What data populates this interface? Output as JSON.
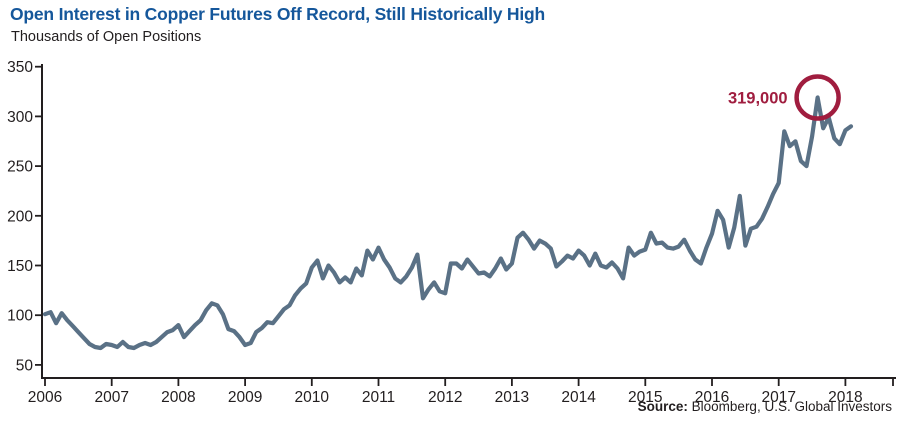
{
  "header": {
    "title": "Open Interest in Copper Futures Off Record, Still Historically High",
    "subtitle": "Thousands of Open Positions"
  },
  "source": {
    "label": "Source:",
    "text": " Bloomberg, U.S. Global Investors"
  },
  "colors": {
    "title_blue": "#15579b",
    "line_slate": "#5a7186",
    "annotation_crimson": "#a01d3f",
    "axis_black": "#221e1f",
    "background": "#ffffff"
  },
  "chart_data": {
    "type": "line",
    "title": "Open Interest in Copper Futures Off Record, Still Historically High",
    "xlabel": "",
    "ylabel": "Thousands of Open Positions",
    "ylim": [
      50,
      350
    ],
    "y_ticks": [
      50,
      100,
      150,
      200,
      250,
      300,
      350
    ],
    "x_tick_labels": [
      "2006",
      "2007",
      "2008",
      "2009",
      "2010",
      "2011",
      "2012",
      "2013",
      "2014",
      "2015",
      "2016",
      "2017",
      "2018"
    ],
    "grid": false,
    "legend_position": "none",
    "frequency": "monthly",
    "start_period": "2006-01",
    "end_period": "2018-02",
    "series": [
      {
        "name": "Copper futures open interest (thousands of contracts)",
        "values": [
          101,
          103,
          92,
          102,
          95,
          89,
          83,
          77,
          71,
          68,
          67,
          71,
          70,
          68,
          73,
          68,
          67,
          70,
          72,
          70,
          73,
          78,
          83,
          85,
          90,
          78,
          84,
          90,
          95,
          105,
          112,
          110,
          101,
          86,
          84,
          78,
          70,
          72,
          83,
          87,
          93,
          92,
          99,
          106,
          110,
          120,
          127,
          132,
          148,
          155,
          137,
          150,
          143,
          133,
          138,
          133,
          147,
          140,
          165,
          156,
          168,
          156,
          148,
          137,
          133,
          139,
          148,
          161,
          117,
          126,
          133,
          124,
          122,
          152,
          152,
          147,
          156,
          149,
          142,
          143,
          139,
          147,
          157,
          146,
          152,
          178,
          183,
          176,
          167,
          175,
          172,
          167,
          149,
          154,
          160,
          157,
          165,
          160,
          150,
          162,
          150,
          148,
          153,
          147,
          137,
          168,
          160,
          164,
          166,
          183,
          172,
          173,
          168,
          167,
          169,
          176,
          165,
          156,
          152,
          168,
          182,
          205,
          196,
          168,
          188,
          220,
          170,
          187,
          189,
          197,
          209,
          222,
          233,
          285,
          270,
          275,
          255,
          250,
          280,
          319,
          288,
          299,
          278,
          272,
          286,
          290
        ]
      }
    ],
    "annotation": {
      "label": "319,000",
      "value": 319,
      "period": "2017-08",
      "month_index": 139
    }
  }
}
